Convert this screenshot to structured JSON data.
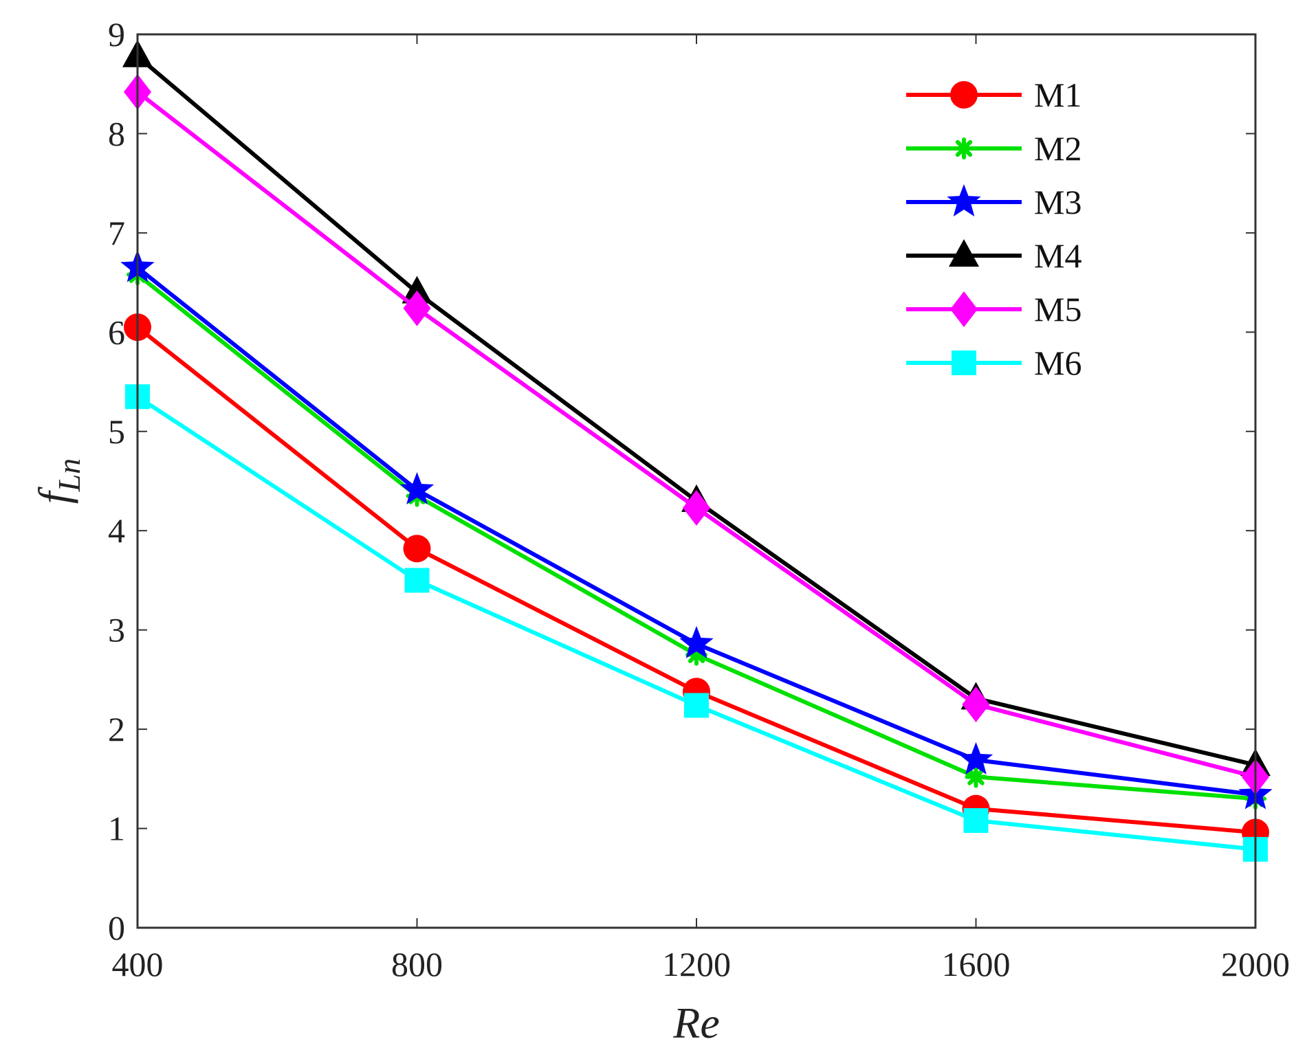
{
  "chart_data": {
    "type": "line",
    "title": "",
    "xlabel": "Re",
    "ylabel_main": "f",
    "ylabel_sub": "Ln",
    "x": [
      400,
      800,
      1200,
      1600,
      2000
    ],
    "xlim": [
      400,
      2000
    ],
    "ylim": [
      0,
      9
    ],
    "xticks": [
      "400",
      "800",
      "1200",
      "1600",
      "2000"
    ],
    "yticks": [
      "0",
      "1",
      "2",
      "3",
      "4",
      "5",
      "6",
      "7",
      "8",
      "9"
    ],
    "grid": false,
    "legend_position": "top-right",
    "series": [
      {
        "name": "M1",
        "color": "#ff0000",
        "marker": "circle",
        "values": [
          6.05,
          3.82,
          2.38,
          1.2,
          0.96
        ]
      },
      {
        "name": "M2",
        "color": "#00e000",
        "marker": "asterisk",
        "values": [
          6.58,
          4.35,
          2.75,
          1.52,
          1.3
        ]
      },
      {
        "name": "M3",
        "color": "#0000ff",
        "marker": "star",
        "values": [
          6.65,
          4.41,
          2.86,
          1.69,
          1.34
        ]
      },
      {
        "name": "M4",
        "color": "#000000",
        "marker": "triangle",
        "values": [
          8.78,
          6.4,
          4.3,
          2.31,
          1.64
        ]
      },
      {
        "name": "M5",
        "color": "#ff00ff",
        "marker": "diamond",
        "values": [
          8.42,
          6.24,
          4.23,
          2.25,
          1.52
        ]
      },
      {
        "name": "M6",
        "color": "#00ffff",
        "marker": "square",
        "values": [
          5.35,
          3.5,
          2.24,
          1.08,
          0.79
        ]
      }
    ]
  }
}
